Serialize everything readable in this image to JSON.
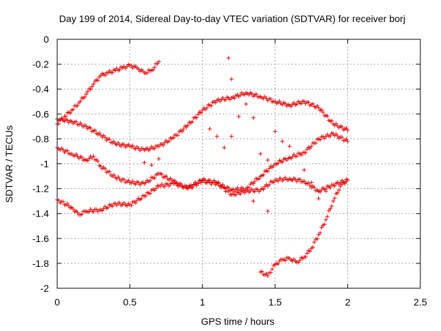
{
  "chart_data": {
    "type": "scatter",
    "title": "Day 199 of 2014, Sidereal Day-to-day VTEC variation (SDTVAR) for receiver borj",
    "xlabel": "GPS time / hours",
    "ylabel": "SDTVAR / TECUs",
    "xlim": [
      0,
      2.5
    ],
    "ylim": [
      -2,
      0
    ],
    "xticks": [
      "0",
      "0.5",
      "1",
      "1.5",
      "2",
      "2.5"
    ],
    "yticks": [
      "0",
      "-0.2",
      "-0.4",
      "-0.6",
      "-0.8",
      "-1",
      "-1.2",
      "-1.4",
      "-1.6",
      "-1.8",
      "-2"
    ],
    "grid": true,
    "marker": "plus",
    "marker_color": "#e00000",
    "series": [
      {
        "points": [
          [
            0.0,
            -0.68
          ],
          [
            0.05,
            -0.62
          ],
          [
            0.1,
            -0.57
          ],
          [
            0.15,
            -0.51
          ],
          [
            0.2,
            -0.44
          ],
          [
            0.25,
            -0.36
          ],
          [
            0.3,
            -0.29
          ],
          [
            0.35,
            -0.27
          ],
          [
            0.4,
            -0.25
          ],
          [
            0.45,
            -0.23
          ],
          [
            0.5,
            -0.21
          ],
          [
            0.55,
            -0.23
          ],
          [
            0.6,
            -0.27
          ],
          [
            0.65,
            -0.25
          ],
          [
            0.7,
            -0.18
          ]
        ]
      },
      {
        "points": [
          [
            0.0,
            -0.64
          ],
          [
            0.1,
            -0.66
          ],
          [
            0.2,
            -0.7
          ],
          [
            0.3,
            -0.77
          ],
          [
            0.4,
            -0.84
          ],
          [
            0.5,
            -0.86
          ],
          [
            0.6,
            -0.89
          ],
          [
            0.7,
            -0.86
          ],
          [
            0.8,
            -0.79
          ],
          [
            0.9,
            -0.69
          ],
          [
            1.0,
            -0.57
          ],
          [
            1.1,
            -0.49
          ],
          [
            1.2,
            -0.47
          ],
          [
            1.3,
            -0.43
          ],
          [
            1.4,
            -0.46
          ],
          [
            1.5,
            -0.5
          ],
          [
            1.6,
            -0.53
          ],
          [
            1.7,
            -0.5
          ],
          [
            1.8,
            -0.55
          ],
          [
            1.9,
            -0.68
          ],
          [
            2.0,
            -0.73
          ]
        ]
      },
      {
        "points": [
          [
            0.0,
            -0.87
          ],
          [
            0.1,
            -0.92
          ],
          [
            0.2,
            -0.97
          ],
          [
            0.25,
            -0.94
          ],
          [
            0.3,
            -1.02
          ],
          [
            0.4,
            -1.11
          ],
          [
            0.5,
            -1.15
          ],
          [
            0.6,
            -1.16
          ],
          [
            0.7,
            -1.08
          ],
          [
            0.8,
            -1.14
          ],
          [
            0.9,
            -1.2
          ],
          [
            1.0,
            -1.14
          ],
          [
            1.1,
            -1.16
          ],
          [
            1.2,
            -1.21
          ],
          [
            1.3,
            -1.2
          ],
          [
            1.4,
            -1.1
          ],
          [
            1.5,
            -1.0
          ],
          [
            1.6,
            -0.95
          ],
          [
            1.7,
            -0.91
          ],
          [
            1.8,
            -0.8
          ],
          [
            1.9,
            -0.76
          ],
          [
            2.0,
            -0.82
          ]
        ]
      },
      {
        "points": [
          [
            0.0,
            -1.29
          ],
          [
            0.1,
            -1.35
          ],
          [
            0.15,
            -1.41
          ],
          [
            0.2,
            -1.38
          ],
          [
            0.3,
            -1.37
          ],
          [
            0.4,
            -1.32
          ],
          [
            0.5,
            -1.33
          ],
          [
            0.6,
            -1.26
          ],
          [
            0.7,
            -1.18
          ],
          [
            0.8,
            -1.16
          ],
          [
            0.9,
            -1.19
          ],
          [
            1.0,
            -1.13
          ],
          [
            1.1,
            -1.15
          ],
          [
            1.2,
            -1.25
          ],
          [
            1.3,
            -1.22
          ],
          [
            1.4,
            -1.21
          ],
          [
            1.5,
            -1.13
          ],
          [
            1.6,
            -1.12
          ],
          [
            1.7,
            -1.14
          ],
          [
            1.8,
            -1.22
          ],
          [
            1.9,
            -1.17
          ],
          [
            2.0,
            -1.13
          ]
        ]
      },
      {
        "points": [
          [
            1.4,
            -1.87
          ],
          [
            1.45,
            -1.9
          ],
          [
            1.5,
            -1.81
          ],
          [
            1.55,
            -1.77
          ],
          [
            1.6,
            -1.76
          ],
          [
            1.65,
            -1.79
          ],
          [
            1.7,
            -1.75
          ],
          [
            1.75,
            -1.68
          ],
          [
            1.8,
            -1.57
          ],
          [
            1.85,
            -1.45
          ],
          [
            1.9,
            -1.3
          ],
          [
            1.95,
            -1.18
          ],
          [
            2.0,
            -1.13
          ]
        ]
      },
      {
        "points": [
          [
            0.6,
            -0.99
          ],
          [
            0.65,
            -1.01
          ],
          [
            0.7,
            -0.96
          ],
          [
            1.05,
            -0.72
          ],
          [
            1.1,
            -0.78
          ],
          [
            1.15,
            -0.87
          ],
          [
            1.2,
            -0.78
          ],
          [
            1.18,
            -0.15
          ],
          [
            1.2,
            -0.32
          ],
          [
            1.25,
            -0.62
          ],
          [
            1.3,
            -0.52
          ],
          [
            1.35,
            -0.63
          ],
          [
            1.4,
            -0.92
          ],
          [
            1.45,
            -0.97
          ],
          [
            1.5,
            -0.74
          ],
          [
            1.55,
            -0.82
          ],
          [
            1.6,
            -0.86
          ],
          [
            1.7,
            -1.05
          ],
          [
            1.75,
            -1.15
          ],
          [
            1.45,
            -1.38
          ],
          [
            1.35,
            -1.3
          ],
          [
            1.8,
            -1.28
          ],
          [
            1.85,
            -1.22
          ]
        ]
      }
    ]
  }
}
